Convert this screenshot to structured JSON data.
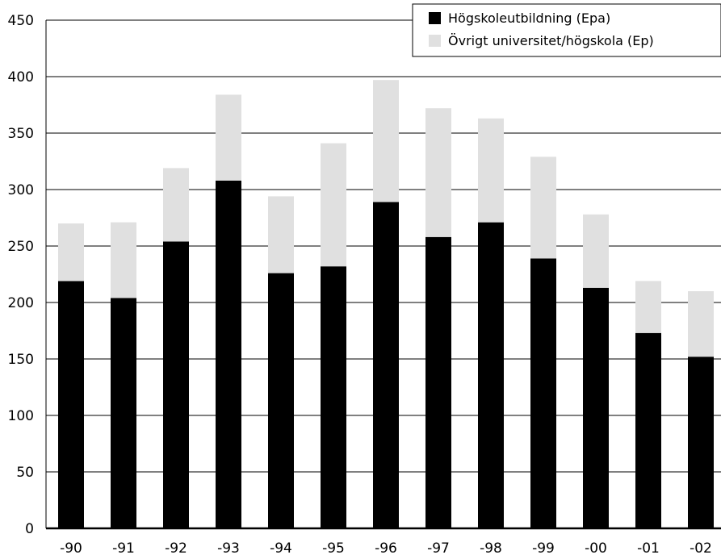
{
  "chart_data": {
    "type": "bar",
    "stacked": true,
    "categories": [
      "-90",
      "-91",
      "-92",
      "-93",
      "-94",
      "-95",
      "-96",
      "-97",
      "-98",
      "-99",
      "-00",
      "-01",
      "-02"
    ],
    "series": [
      {
        "name": "Högskoleutbildning (Epa)",
        "color": "#000000",
        "values": [
          219,
          204,
          254,
          308,
          226,
          232,
          289,
          258,
          271,
          239,
          213,
          173,
          152
        ]
      },
      {
        "name": "Övrigt universitet/högskola (Ep)",
        "color": "#e0e0e0",
        "values": [
          51,
          67,
          65,
          76,
          68,
          109,
          108,
          114,
          92,
          90,
          65,
          46,
          58
        ]
      }
    ],
    "title": "",
    "xlabel": "",
    "ylabel": "",
    "ylim": [
      0,
      450
    ],
    "yticks": [
      0,
      50,
      100,
      150,
      200,
      250,
      300,
      350,
      400,
      450
    ],
    "grid": true,
    "legend_position": "top-right"
  }
}
